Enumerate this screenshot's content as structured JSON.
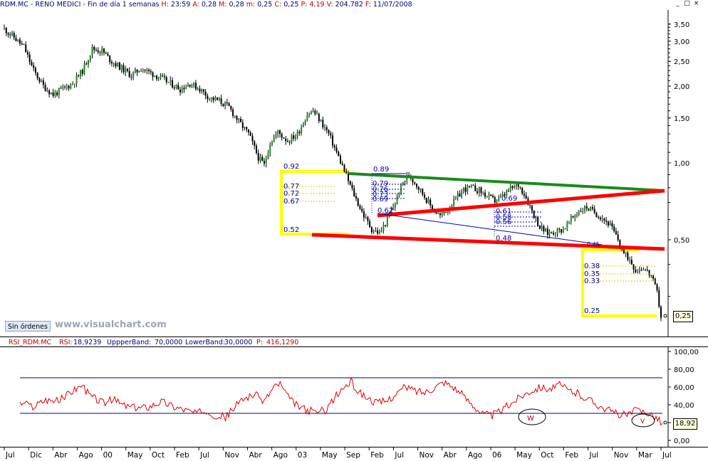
{
  "header": {
    "symbol": "RDM.MC",
    "name": "RENO MEDICI",
    "period": "Fin de día 1 semanas",
    "h_label": "H:",
    "h_value": "23:59",
    "a_label": "A:",
    "a_value": "0,28",
    "m_label": "M:",
    "m_value": "0,28",
    "min_label": "m:",
    "min_value": "0,25",
    "c_label": "C:",
    "c_value": "0,25",
    "p_label": "P:",
    "p_value": "4,19",
    "v_label": "V:",
    "v_value": "204.782",
    "f_label": "F:",
    "f_value": "11/07/2008"
  },
  "window_buttons": {
    "minimize": "_",
    "restore": "□",
    "close": "×"
  },
  "sin_ordenes": "Sin órdenes",
  "watermark": "www.visualchart.com",
  "last_price_tag": "0,25",
  "rsi_header": {
    "name": "RSI_RDM.MC",
    "rsi_label": "RSI:",
    "rsi_value": "18,9239",
    "upper_label": "UppperBand:",
    "upper_value": "70,0000",
    "lower_label": "LowerBand:",
    "lower_value": "30,0000",
    "p_label": "P:",
    "p_value": "416,1290"
  },
  "rsi_last_tag": "18,92",
  "colors": {
    "up_candle": "#1a8a1a",
    "down_candle": "#000000",
    "rsi_line": "#e00000",
    "band_line": "#000080",
    "support_red": "#ff0000",
    "resistance_green": "#1a8a1a",
    "yellow": "#ffff00",
    "fib_blue": "#0000c0",
    "header_blue": "#000080",
    "header_red": "#c00000"
  },
  "chart_data": [
    {
      "type": "candlestick",
      "title": "RDM.MC - RENO MEDICI - Fin de día 1 semanas",
      "y_scale": "log",
      "ylim": [
        0.22,
        3.8
      ],
      "y_ticks": [
        "3,50",
        "3,00",
        "2,50",
        "2,00",
        "1,50",
        "1,00",
        "0,50"
      ],
      "y_tick_values": [
        3.5,
        3.0,
        2.5,
        2.0,
        1.5,
        1.0,
        0.5
      ],
      "x_ticks": [
        "Jul",
        "Dic",
        "Abr",
        "Ago",
        "00",
        "May",
        "Oct",
        "Feb",
        "Jul",
        "Nov",
        "Abr",
        "Ago",
        "03",
        "May",
        "Sep",
        "Feb",
        "Jul",
        "Nov",
        "Abr",
        "Ago",
        "06",
        "May",
        "Oct",
        "Feb",
        "Jul",
        "Nov",
        "Mar",
        "Jul"
      ],
      "price_path": [
        [
          0,
          3.35
        ],
        [
          5,
          3.1
        ],
        [
          10,
          2.85
        ],
        [
          15,
          2.3
        ],
        [
          20,
          2.0
        ],
        [
          25,
          1.85
        ],
        [
          30,
          1.95
        ],
        [
          35,
          2.05
        ],
        [
          40,
          2.3
        ],
        [
          45,
          2.8
        ],
        [
          50,
          2.75
        ],
        [
          55,
          2.5
        ],
        [
          60,
          2.35
        ],
        [
          65,
          2.2
        ],
        [
          70,
          2.35
        ],
        [
          75,
          2.25
        ],
        [
          80,
          2.15
        ],
        [
          85,
          2.05
        ],
        [
          90,
          1.95
        ],
        [
          95,
          2.05
        ],
        [
          100,
          1.95
        ],
        [
          105,
          1.8
        ],
        [
          110,
          1.75
        ],
        [
          115,
          1.65
        ],
        [
          120,
          1.45
        ],
        [
          125,
          1.3
        ],
        [
          130,
          1.05
        ],
        [
          133,
          0.98
        ],
        [
          136,
          1.2
        ],
        [
          140,
          1.32
        ],
        [
          145,
          1.22
        ],
        [
          150,
          1.3
        ],
        [
          155,
          1.55
        ],
        [
          158,
          1.6
        ],
        [
          162,
          1.45
        ],
        [
          166,
          1.3
        ],
        [
          170,
          1.1
        ],
        [
          173,
          0.97
        ],
        [
          176,
          0.85
        ],
        [
          180,
          0.72
        ],
        [
          184,
          0.62
        ],
        [
          188,
          0.55
        ],
        [
          192,
          0.53
        ],
        [
          196,
          0.6
        ],
        [
          200,
          0.7
        ],
        [
          204,
          0.84
        ],
        [
          207,
          0.9
        ],
        [
          211,
          0.82
        ],
        [
          215,
          0.74
        ],
        [
          219,
          0.66
        ],
        [
          223,
          0.62
        ],
        [
          227,
          0.66
        ],
        [
          231,
          0.72
        ],
        [
          235,
          0.79
        ],
        [
          239,
          0.8
        ],
        [
          243,
          0.78
        ],
        [
          247,
          0.74
        ],
        [
          251,
          0.71
        ],
        [
          255,
          0.74
        ],
        [
          259,
          0.79
        ],
        [
          263,
          0.82
        ],
        [
          266,
          0.76
        ],
        [
          270,
          0.65
        ],
        [
          274,
          0.56
        ],
        [
          278,
          0.53
        ],
        [
          282,
          0.54
        ],
        [
          286,
          0.55
        ],
        [
          290,
          0.6
        ],
        [
          294,
          0.65
        ],
        [
          298,
          0.67
        ],
        [
          302,
          0.64
        ],
        [
          306,
          0.61
        ],
        [
          310,
          0.57
        ],
        [
          314,
          0.5
        ],
        [
          317,
          0.44
        ],
        [
          320,
          0.42
        ],
        [
          323,
          0.38
        ],
        [
          327,
          0.39
        ],
        [
          331,
          0.36
        ],
        [
          334,
          0.31
        ],
        [
          336,
          0.25
        ]
      ],
      "annotations": [
        "0.92",
        "0.77",
        "0.72",
        "0.67",
        "0.52",
        "0.89",
        "0.79",
        "0.76",
        "0.73",
        "0.69",
        "0.62",
        "0.69",
        "0.61",
        "0.58",
        "0.56",
        "0.48",
        "0.38",
        "0.35",
        "0.33",
        "0.25",
        "0.45"
      ],
      "trendlines": [
        {
          "color": "green",
          "from": [
            207,
            0.89
          ],
          "to": [
            336,
            0.78
          ]
        },
        {
          "color": "red",
          "from": [
            238,
            0.62
          ],
          "to": [
            336,
            0.78
          ]
        },
        {
          "color": "red",
          "from": [
            191,
            0.52
          ],
          "to": [
            336,
            0.43
          ]
        }
      ]
    },
    {
      "type": "line",
      "title": "RSI_RDM.MC",
      "ylim": [
        -5,
        100
      ],
      "y_ticks": [
        "100,00",
        "80,00",
        "60,00",
        "40,00",
        "20,00",
        "0,00"
      ],
      "y_tick_values": [
        100,
        80,
        60,
        40,
        20,
        0
      ],
      "bands": {
        "upper": 70,
        "lower": 30
      },
      "last_value": 18.92,
      "annotations": [
        "W",
        "V"
      ],
      "rsi_path": [
        [
          0,
          42
        ],
        [
          8,
          38
        ],
        [
          16,
          46
        ],
        [
          24,
          44
        ],
        [
          32,
          55
        ],
        [
          38,
          62
        ],
        [
          44,
          50
        ],
        [
          52,
          42
        ],
        [
          58,
          46
        ],
        [
          64,
          40
        ],
        [
          72,
          36
        ],
        [
          80,
          38
        ],
        [
          88,
          44
        ],
        [
          96,
          38
        ],
        [
          104,
          34
        ],
        [
          110,
          30
        ],
        [
          116,
          34
        ],
        [
          122,
          28
        ],
        [
          128,
          26
        ],
        [
          134,
          38
        ],
        [
          140,
          48
        ],
        [
          146,
          52
        ],
        [
          152,
          44
        ],
        [
          158,
          60
        ],
        [
          162,
          64
        ],
        [
          166,
          50
        ],
        [
          172,
          40
        ],
        [
          178,
          34
        ],
        [
          184,
          32
        ],
        [
          190,
          34
        ],
        [
          196,
          48
        ],
        [
          202,
          60
        ],
        [
          206,
          66
        ],
        [
          210,
          56
        ],
        [
          216,
          48
        ],
        [
          222,
          42
        ],
        [
          228,
          44
        ],
        [
          234,
          52
        ],
        [
          240,
          60
        ],
        [
          246,
          56
        ],
        [
          252,
          54
        ],
        [
          258,
          60
        ],
        [
          264,
          66
        ],
        [
          270,
          60
        ],
        [
          276,
          50
        ],
        [
          282,
          40
        ],
        [
          288,
          30
        ],
        [
          294,
          28
        ],
        [
          300,
          34
        ],
        [
          306,
          42
        ],
        [
          312,
          50
        ],
        [
          318,
          56
        ],
        [
          324,
          60
        ],
        [
          330,
          58
        ],
        [
          336,
          62
        ],
        [
          342,
          56
        ],
        [
          348,
          52
        ],
        [
          354,
          46
        ],
        [
          360,
          40
        ],
        [
          366,
          34
        ],
        [
          372,
          30
        ],
        [
          378,
          28
        ],
        [
          384,
          34
        ],
        [
          390,
          32
        ],
        [
          396,
          26
        ],
        [
          400,
          19
        ]
      ]
    }
  ]
}
